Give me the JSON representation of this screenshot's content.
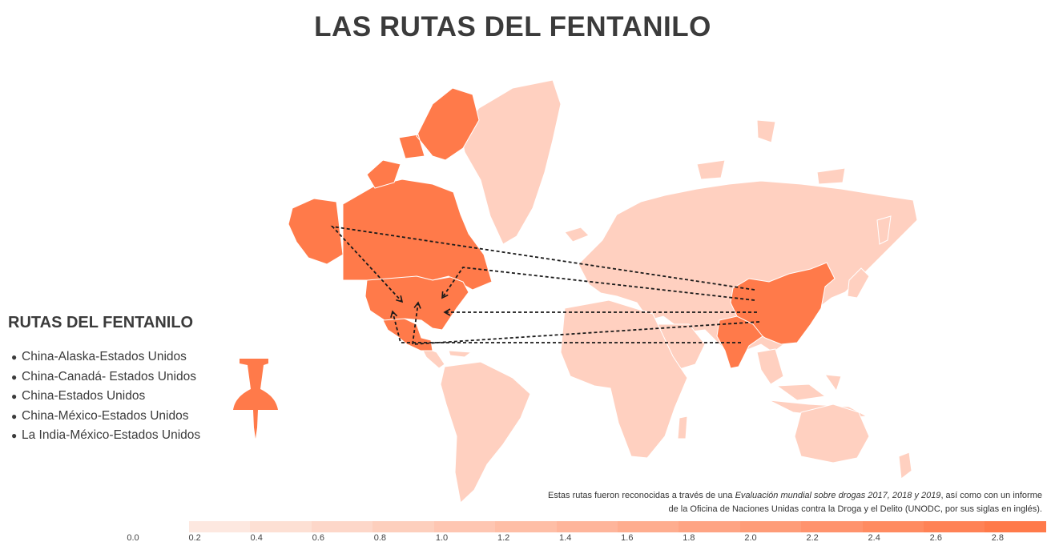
{
  "title": "LAS RUTAS DEL FENTANILO",
  "legend": {
    "heading": "RUTAS DEL FENTANILO",
    "bullet": "●",
    "routes": [
      "China-Alaska-Estados Unidos",
      "China-Canadá- Estados Unidos",
      "China-Estados Unidos",
      "China-México-Estados Unidos",
      "La India-México-Estados Unidos"
    ],
    "pin_icon": "pushpin-icon"
  },
  "note": {
    "part1": "Estas rutas fueron reconocidas a través de una ",
    "italic": "Evaluación mundial sobre drogas 2017, 2018 y 2019",
    "part2": ", así como con un informe de la Oficina de Naciones Unidas contra la Droga y el Delito (UNODC, por sus siglas en inglés)."
  },
  "color_scale": {
    "labels": [
      "0.0",
      "0.2",
      "0.4",
      "0.6",
      "0.8",
      "1.0",
      "1.2",
      "1.4",
      "1.6",
      "1.8",
      "2.0",
      "2.2",
      "2.4",
      "2.6",
      "2.8"
    ],
    "min_color": "#fde8e0",
    "max_color": "#ff7a4a"
  },
  "colors": {
    "highlight": "#ff7a4a",
    "base_land": "#ffd0c0",
    "route_line": "#1a1a1a"
  },
  "highlighted_countries": [
    "Estados Unidos",
    "Canadá",
    "México",
    "China",
    "La India"
  ]
}
